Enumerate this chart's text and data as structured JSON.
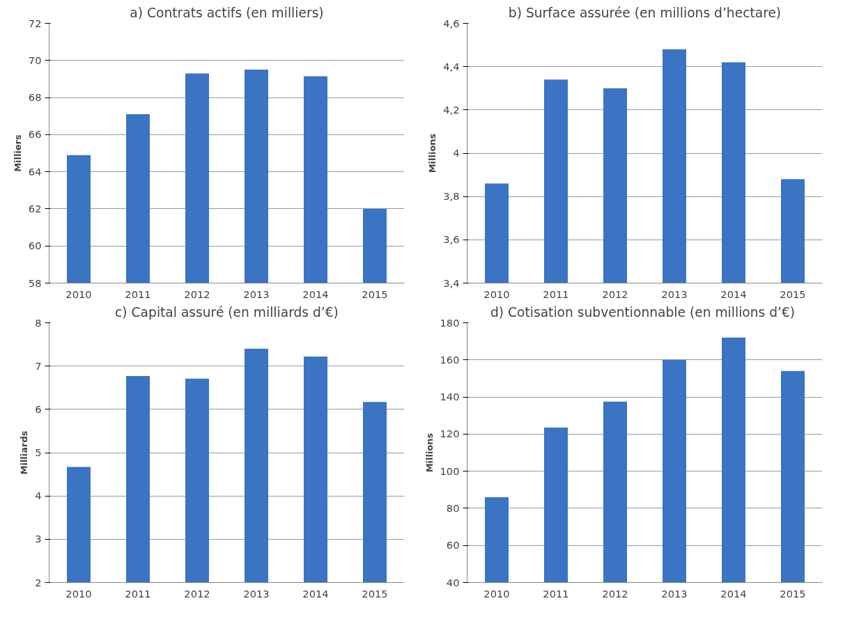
{
  "chart_data": [
    {
      "type": "bar",
      "title": "a) Contrats actifs (en milliers)",
      "ylabel": "Milliers",
      "categories": [
        "2010",
        "2011",
        "2012",
        "2013",
        "2014",
        "2015"
      ],
      "values": [
        64.9,
        67.1,
        69.3,
        69.5,
        69.15,
        62.0
      ],
      "color": "#3a74c2",
      "ylim": [
        58,
        72
      ],
      "yticks": [
        58,
        60,
        62,
        64,
        66,
        68,
        70,
        72
      ],
      "grid": "y"
    },
    {
      "type": "bar",
      "title": "b) Surface assurée (en millions d’hectare)",
      "ylabel": "Millions",
      "categories": [
        "2010",
        "2011",
        "2012",
        "2013",
        "2014",
        "2015"
      ],
      "values": [
        3.86,
        4.34,
        4.3,
        4.48,
        4.42,
        3.88
      ],
      "color": "#3a74c2",
      "ylim": [
        3.4,
        4.6
      ],
      "yticks": [
        {
          "value": 3.4,
          "label": "3,4"
        },
        {
          "value": 3.6,
          "label": "3,6"
        },
        {
          "value": 3.8,
          "label": "3,8"
        },
        4,
        {
          "value": 4.2,
          "label": "4,2"
        },
        {
          "value": 4.4,
          "label": "4,4"
        },
        {
          "value": 4.6,
          "label": "4,6"
        }
      ],
      "grid": "y"
    },
    {
      "type": "bar",
      "title": "c) Capital assuré (en milliards d’€)",
      "ylabel": "Milliards",
      "categories": [
        "2010",
        "2011",
        "2012",
        "2013",
        "2014",
        "2015"
      ],
      "values": [
        4.67,
        6.77,
        6.71,
        7.4,
        7.22,
        6.17
      ],
      "color": "#3a74c2",
      "ylim": [
        2,
        8
      ],
      "yticks": [
        2,
        3,
        4,
        5,
        6,
        7,
        8
      ],
      "grid": "y"
    },
    {
      "type": "bar",
      "title": "d) Cotisation subventionnable  (en millions d’€)",
      "ylabel": "Millions",
      "categories": [
        "2010",
        "2011",
        "2012",
        "2013",
        "2014",
        "2015"
      ],
      "values": [
        86,
        123.5,
        137.5,
        160,
        172,
        154
      ],
      "color": "#3a74c2",
      "ylim": [
        40,
        180
      ],
      "yticks": [
        40,
        60,
        80,
        100,
        120,
        140,
        160,
        180
      ],
      "grid": "y"
    }
  ]
}
